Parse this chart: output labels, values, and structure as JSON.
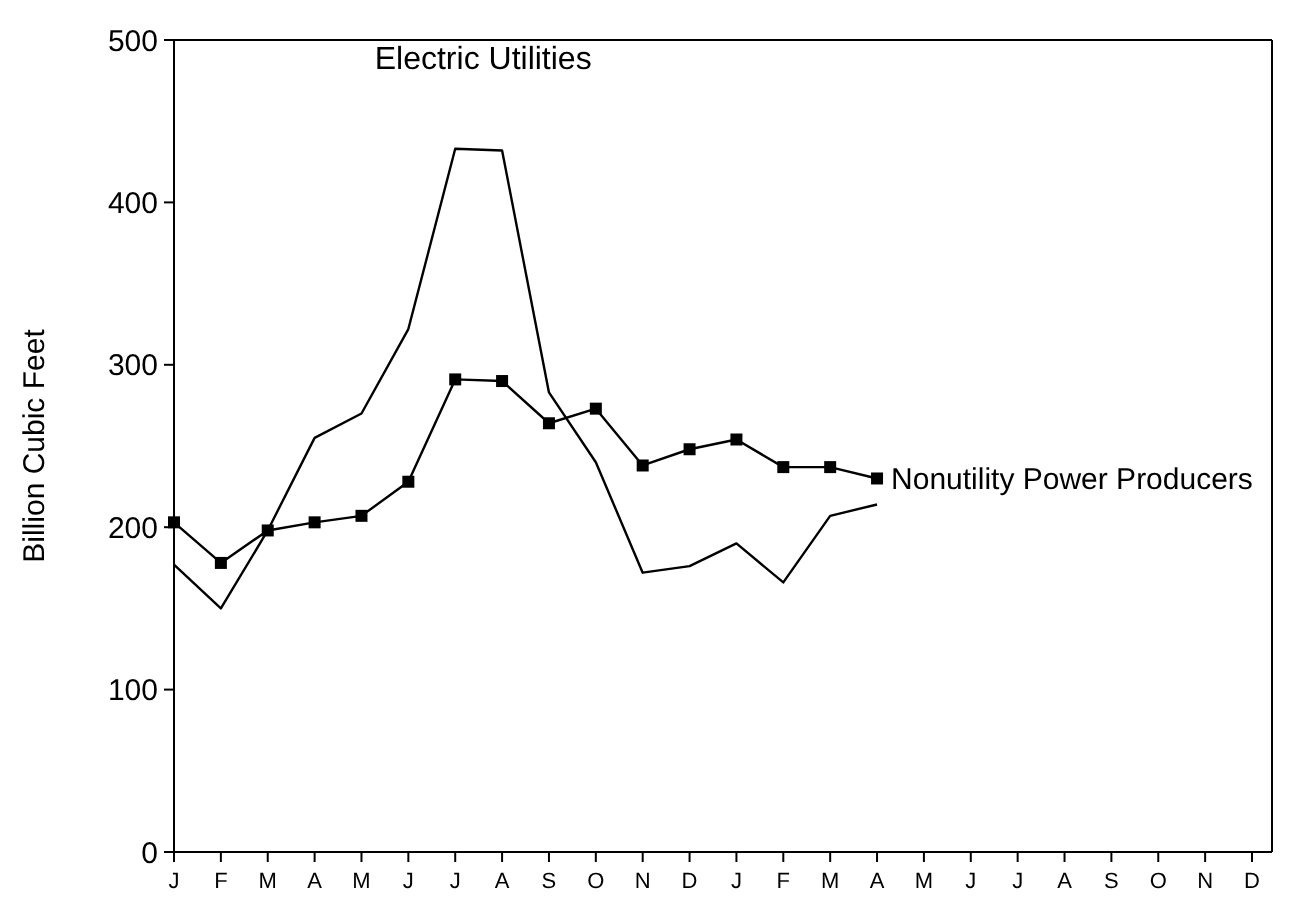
{
  "chart_data": {
    "type": "line",
    "ylabel": "Billion Cubic Feet",
    "categories": [
      "J",
      "F",
      "M",
      "A",
      "M",
      "J",
      "J",
      "A",
      "S",
      "O",
      "N",
      "D",
      "J",
      "F",
      "M",
      "A",
      "M",
      "J",
      "J",
      "A",
      "S",
      "O",
      "N",
      "D"
    ],
    "series": [
      {
        "name": "Electric Utilities",
        "color": "#000000",
        "marker": "none",
        "values": [
          177,
          150,
          198,
          255,
          270,
          322,
          433,
          432,
          283,
          240,
          172,
          176,
          190,
          166,
          207,
          214,
          null,
          null,
          null,
          null,
          null,
          null,
          null,
          null
        ]
      },
      {
        "name": "Nonutility Power Producers",
        "color": "#000000",
        "marker": "square",
        "values": [
          203,
          178,
          198,
          203,
          207,
          228,
          291,
          290,
          264,
          273,
          238,
          248,
          254,
          237,
          237,
          230,
          null,
          null,
          null,
          null,
          null,
          null,
          null,
          null
        ]
      }
    ],
    "ylim": [
      0,
      500
    ],
    "yticks": [
      0,
      100,
      200,
      300,
      400,
      500
    ],
    "grid": false,
    "legend": false,
    "line_style": "solid"
  }
}
